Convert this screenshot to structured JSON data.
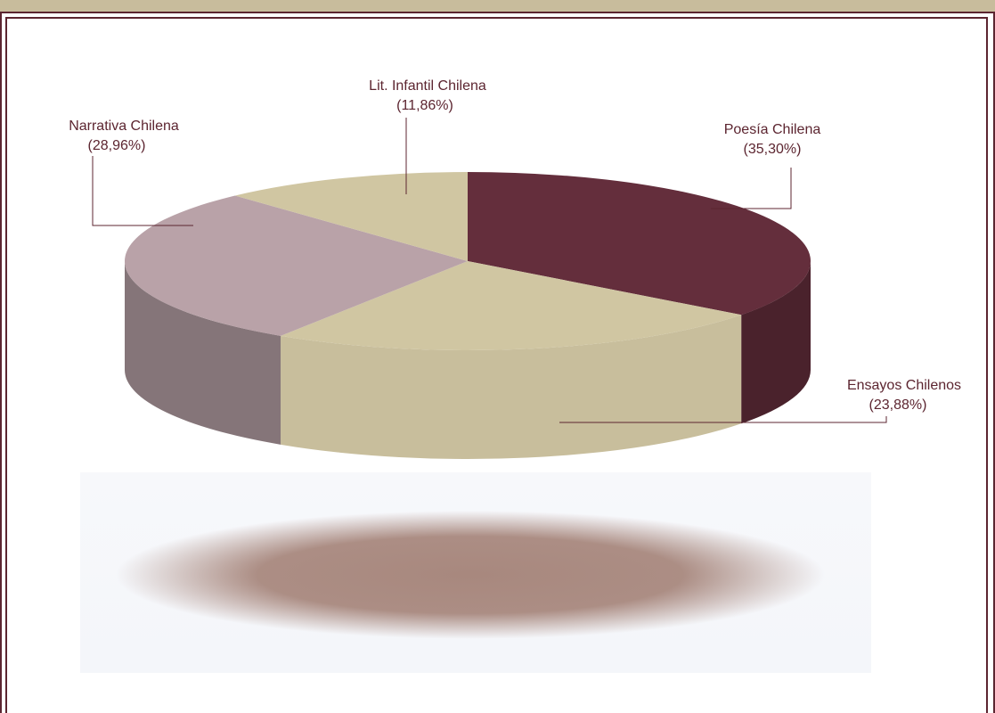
{
  "chart_data": {
    "type": "pie",
    "title": "",
    "slices": [
      {
        "label": "Poesía Chilena",
        "value_label": "(35,30%)",
        "value": 35.3,
        "color": "#642e3c"
      },
      {
        "label": "Ensayos Chilenos",
        "value_label": "(23,88%)",
        "value": 23.88,
        "color": "#d0c6a2"
      },
      {
        "label": "Narrativa Chilena",
        "value_label": "(28,96%)",
        "value": 28.96,
        "color": "#b9a2a8"
      },
      {
        "label": "Lit. Infantil Chilena",
        "value_label": "(11,86%)",
        "value": 11.86,
        "color": "#d0c6a2"
      }
    ],
    "style": "3d-tilted",
    "legend": "none"
  },
  "colors": {
    "frame": "#5c2530",
    "top_band": "#c8bc9c",
    "label_text": "#5c2530",
    "shadow": "#a8887e"
  }
}
